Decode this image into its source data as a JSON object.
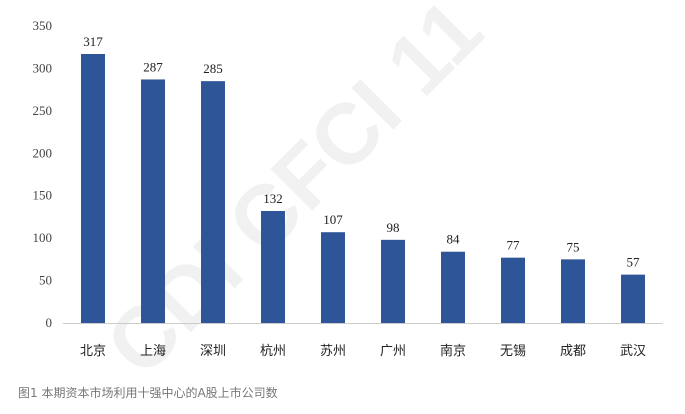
{
  "watermark": "CDI CFCI 11",
  "caption": "图1 本期资本市场利用十强中心的A股上市公司数",
  "colors": {
    "bar": "#2e5597",
    "axis": "#cccccc",
    "text": "#222222"
  },
  "chart_data": {
    "type": "bar",
    "categories": [
      "北京",
      "上海",
      "深圳",
      "杭州",
      "苏州",
      "广州",
      "南京",
      "无锡",
      "成都",
      "武汉"
    ],
    "values": [
      317,
      287,
      285,
      132,
      107,
      98,
      84,
      77,
      75,
      57
    ],
    "ylim": [
      0,
      350
    ],
    "yticks": [
      0,
      50,
      100,
      150,
      200,
      250,
      300,
      350
    ],
    "grid": false,
    "data_labels": true
  }
}
